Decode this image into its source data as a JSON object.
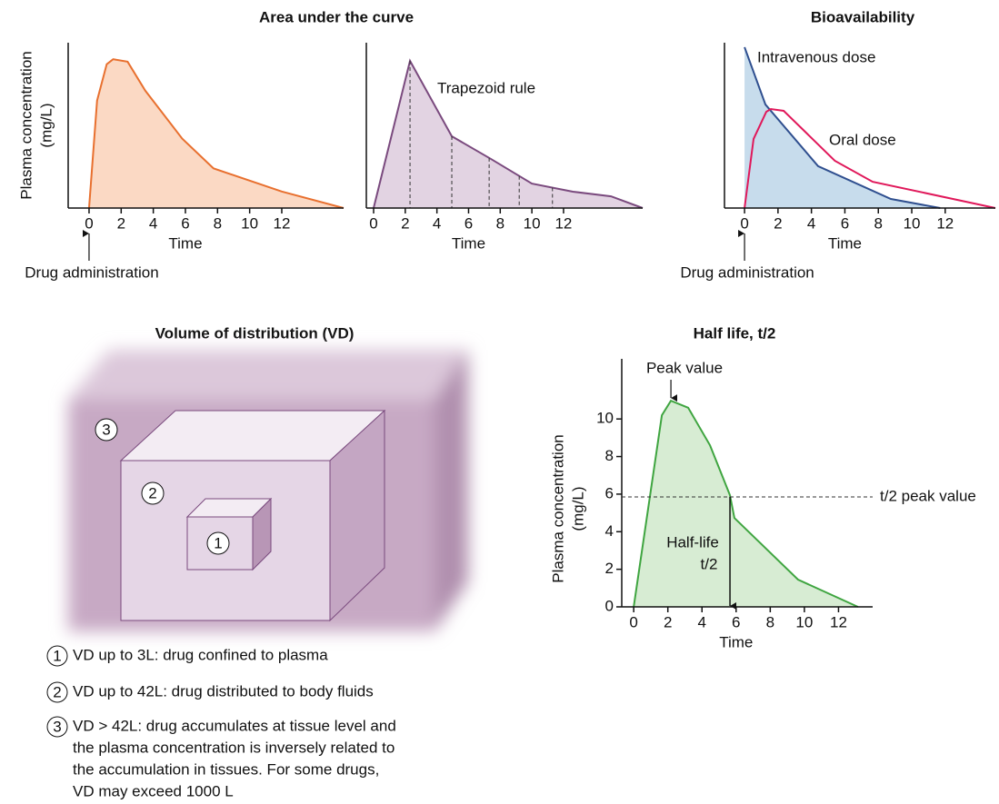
{
  "chart_data": [
    {
      "type": "area",
      "title": "Area under the curve",
      "ylabel": [
        "Plasma concentration",
        "(mg/L)"
      ],
      "xlabel": "Time",
      "annotation": "Drug administration",
      "xlim": [
        -1.3,
        15.85
      ],
      "ylim": [
        0,
        10
      ],
      "xticks": [
        0,
        2,
        4,
        6,
        8,
        10,
        12
      ],
      "series": [
        {
          "color": "#e8702f",
          "fill": "#fbd9c4",
          "x": [
            0,
            0.5,
            1.1,
            1.5,
            2.4,
            3.5,
            5.8,
            7.75,
            12,
            15.85
          ],
          "values": [
            0,
            6.5,
            8.7,
            9.0,
            8.85,
            7.1,
            4.2,
            2.4,
            1.0,
            0
          ]
        }
      ]
    },
    {
      "type": "area",
      "xlabel": "Time",
      "annotation": "Trapezoid rule",
      "xlim": [
        -0.46,
        17
      ],
      "ylim": [
        0,
        10
      ],
      "xticks": [
        0,
        2,
        4,
        6,
        8,
        10,
        12
      ],
      "trapezoid_x": [
        2.3,
        4.94,
        7.3,
        9.2,
        11.3
      ],
      "series": [
        {
          "color": "#7a4a7e",
          "fill": "#e2d3e2",
          "x": [
            0,
            2.3,
            4.94,
            7.41,
            10.0,
            12.59,
            15.0,
            17.0
          ],
          "values": [
            0,
            8.9,
            4.34,
            2.97,
            1.48,
            0.99,
            0.71,
            0
          ]
        }
      ]
    },
    {
      "type": "area",
      "title": "Bioavailability",
      "xlabel": "Time",
      "annotation": "Drug administration",
      "xlim": [
        -1.2,
        15
      ],
      "ylim": [
        0,
        10
      ],
      "xticks": [
        0,
        2,
        4,
        6,
        8,
        10,
        12
      ],
      "series": [
        {
          "name": "Intravenous dose",
          "color": "#2f4f8f",
          "fill": "#c7dcec",
          "x": [
            0,
            1.25,
            4.4,
            8.75,
            11.7
          ],
          "values": [
            9.73,
            6.26,
            2.53,
            0.55,
            0
          ]
        },
        {
          "name": "Oral dose",
          "color": "#e0185a",
          "x": [
            0,
            0.54,
            1.3,
            1.57,
            2.34,
            5.4,
            7.66,
            15
          ],
          "values": [
            0,
            4.18,
            5.82,
            5.99,
            5.88,
            2.86,
            1.59,
            0
          ]
        }
      ]
    },
    {
      "type": "area",
      "title": "Half life, t/2",
      "ylabel": [
        "Plasma concentration",
        "(mg/L)"
      ],
      "xlabel": "Time",
      "peak_label": "Peak value",
      "half_value": 5.85,
      "half_value_label": "t/2 peak value",
      "half_life_time": 5.64,
      "half_life_label": [
        "Half-life",
        "t/2"
      ],
      "xlim": [
        -0.7,
        14
      ],
      "ylim": [
        0,
        13.2
      ],
      "xticks": [
        0,
        2,
        4,
        6,
        8,
        10,
        12
      ],
      "yticks": [
        0,
        2,
        4,
        6,
        8,
        10
      ],
      "series": [
        {
          "color": "#3fa540",
          "fill": "#d7ecd3",
          "x": [
            0,
            1.65,
            2.18,
            3.19,
            4.47,
            5.64,
            5.9,
            9.63,
            13.14
          ],
          "values": [
            0,
            10.2,
            10.97,
            10.6,
            8.6,
            5.94,
            4.73,
            1.45,
            0
          ]
        }
      ]
    }
  ],
  "diagram": {
    "title": "Volume of distribution (VD)",
    "box_labels": [
      "1",
      "2",
      "3"
    ],
    "legend": [
      {
        "number": "1",
        "lines": [
          "VD up to 3L: drug confined to plasma"
        ]
      },
      {
        "number": "2",
        "lines": [
          "VD up to 42L: drug distributed to body fluids"
        ]
      },
      {
        "number": "3",
        "lines": [
          "VD > 42L: drug accumulates at tissue level and",
          "the plasma concentration is inversely related to",
          "the accumulation in tissues. For some drugs,",
          "VD may exceed 1000 L"
        ]
      }
    ]
  }
}
